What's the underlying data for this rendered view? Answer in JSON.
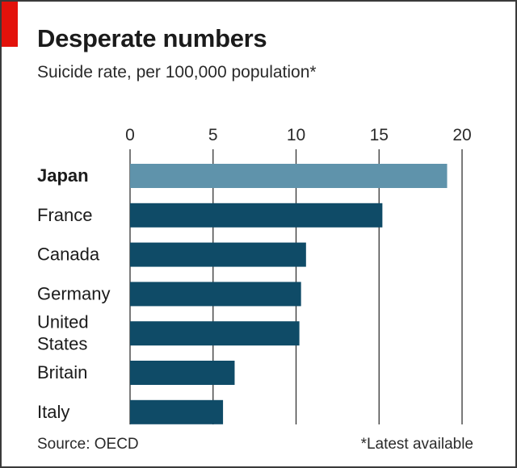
{
  "colors": {
    "accent": "#e3120b",
    "highlight_bar": "#5f93ab",
    "bar": "#0f4b67",
    "gridline": "#333333"
  },
  "footer": {
    "source": "Source: OECD",
    "note": "*Latest available"
  },
  "chart_data": {
    "type": "bar",
    "orientation": "horizontal",
    "title": "Desperate numbers",
    "subtitle": "Suicide rate, per 100,000 population*",
    "categories": [
      "Japan",
      "France",
      "Canada",
      "Germany",
      "United States",
      "Britain",
      "Italy"
    ],
    "category_lines": [
      [
        "Japan"
      ],
      [
        "France"
      ],
      [
        "Canada"
      ],
      [
        "Germany"
      ],
      [
        "United",
        "States"
      ],
      [
        "Britain"
      ],
      [
        "Italy"
      ]
    ],
    "values": [
      19.1,
      15.2,
      10.6,
      10.3,
      10.2,
      6.3,
      5.6
    ],
    "highlight": "Japan",
    "xlim": [
      0,
      20
    ],
    "xticks": [
      0,
      5,
      10,
      15,
      20
    ],
    "axis_position": "top",
    "grid": true,
    "legend": "none"
  }
}
